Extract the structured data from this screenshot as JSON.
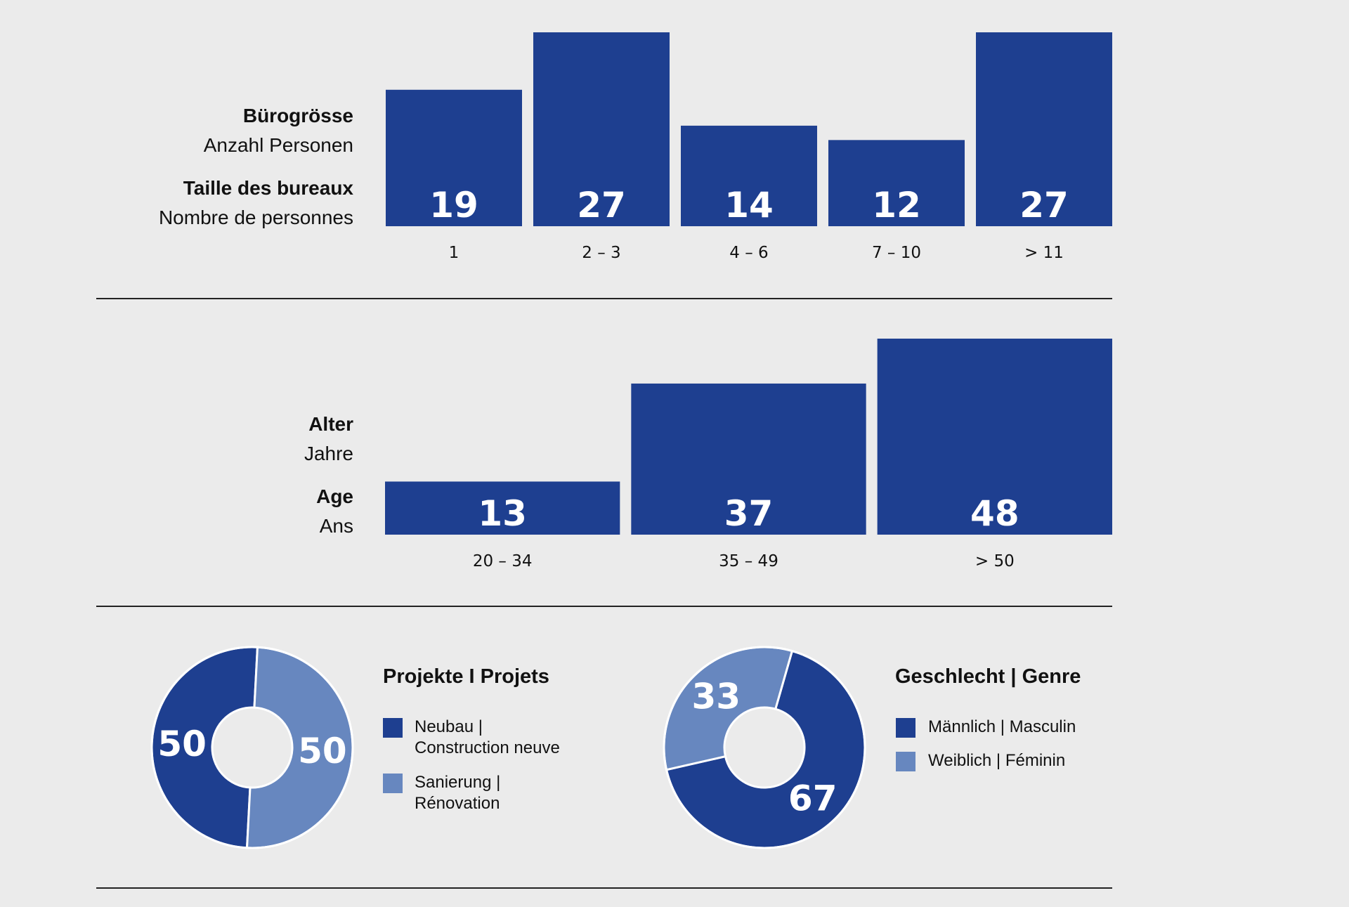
{
  "colors": {
    "dark": "#1e3f90",
    "light": "#6787bf",
    "bg": "#ebebeb",
    "rule": "#222222"
  },
  "office_size": {
    "title_de": "Bürogrösse",
    "subtitle_de": "Anzahl Personen",
    "title_fr": "Taille des bureaux",
    "subtitle_fr": "Nombre de personnes"
  },
  "age": {
    "title_de": "Alter",
    "subtitle_de": "Jahre",
    "title_fr": "Age",
    "subtitle_fr": "Ans"
  },
  "projects": {
    "title": "Projekte I Projets",
    "legend": [
      {
        "line1": "Neubau |",
        "line2": "Construction neuve"
      },
      {
        "line1": "Sanierung |",
        "line2": "Rénovation"
      }
    ]
  },
  "gender": {
    "title": "Geschlecht | Genre",
    "legend": [
      {
        "line1": "Männlich | Masculin"
      },
      {
        "line1": "Weiblich | Féminin"
      }
    ]
  },
  "chart_data": [
    {
      "type": "bar",
      "categories": [
        "1",
        "2 – 3",
        "4 – 6",
        "7 – 10",
        "> 11"
      ],
      "values": [
        19,
        27,
        14,
        12,
        27
      ]
    },
    {
      "type": "bar",
      "categories": [
        "20 – 34",
        "35 – 49",
        "> 50"
      ],
      "values": [
        13,
        37,
        48
      ]
    },
    {
      "type": "pie",
      "categories": [
        "Neubau | Construction neuve",
        "Sanierung | Rénovation"
      ],
      "values": [
        50,
        50
      ]
    },
    {
      "type": "pie",
      "categories": [
        "Männlich | Masculin",
        "Weiblich | Féminin"
      ],
      "values": [
        67,
        33
      ]
    }
  ]
}
